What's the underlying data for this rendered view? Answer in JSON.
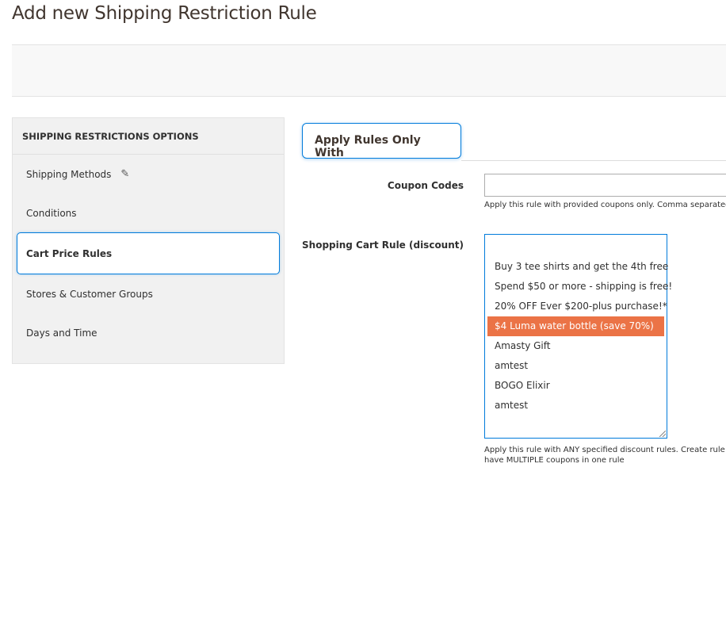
{
  "page": {
    "title": "Add new Shipping Restriction Rule"
  },
  "sidebar": {
    "heading": "SHIPPING RESTRICTIONS OPTIONS",
    "items": [
      {
        "label": "Shipping Methods",
        "icon": "pencil-icon"
      },
      {
        "label": "Conditions"
      },
      {
        "label": "Cart Price Rules",
        "active": true
      },
      {
        "label": "Stores & Customer Groups"
      },
      {
        "label": "Days and Time"
      }
    ]
  },
  "main": {
    "tab": "Apply Rules Only With",
    "coupon": {
      "label": "Coupon Codes",
      "value": "",
      "note": "Apply this rule with provided coupons only. Comma separated."
    },
    "cart_rule": {
      "label": "Shopping Cart Rule (discount)",
      "options": [
        "Buy 3 tee shirts and get the 4th free",
        "Spend $50 or more - shipping is free!",
        "20% OFF Ever $200-plus purchase!*",
        "$4 Luma water bottle (save 70%)",
        "Amasty Gift",
        "amtest",
        "BOGO Elixir",
        "amtest"
      ],
      "selected": "$4 Luma water bottle (save 70%)",
      "note_line1": "Apply this rule with ANY specified discount rules. Create rule in",
      "note_line2": "have MULTIPLE coupons in one rule"
    }
  },
  "colors": {
    "accent": "#007bdb",
    "selected": "#eb7346"
  }
}
